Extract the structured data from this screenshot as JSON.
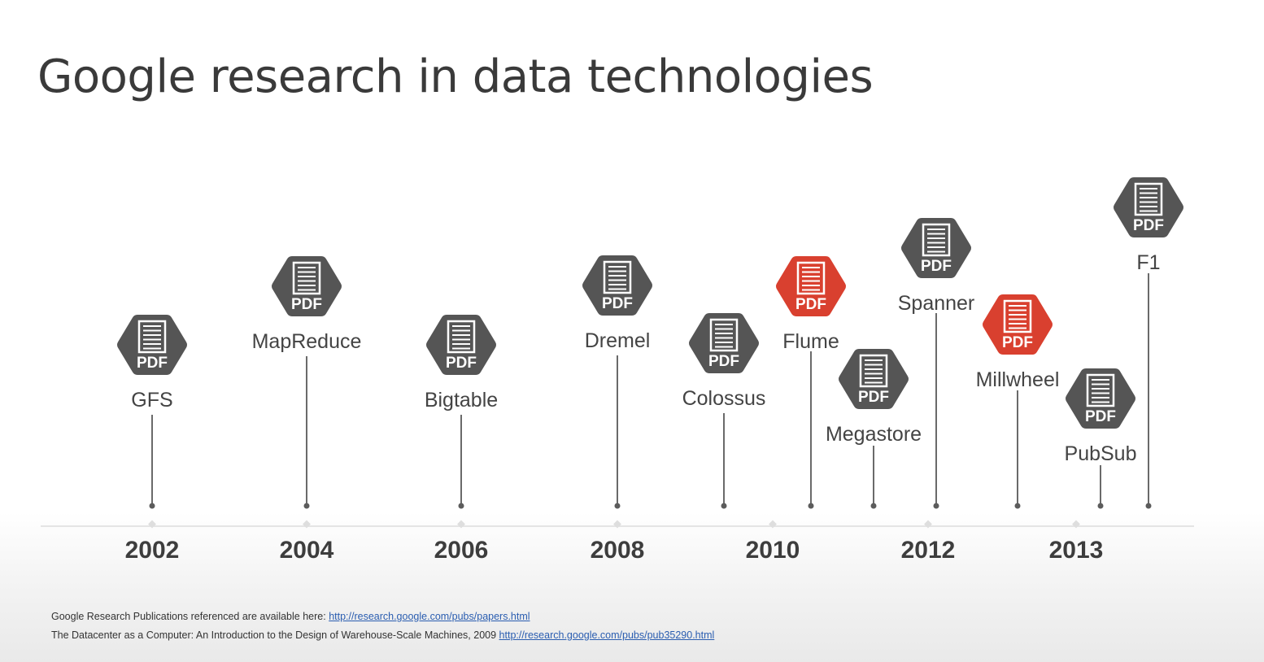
{
  "title": "Google research in data technologies",
  "colors": {
    "icon_default": "#555555",
    "icon_highlight": "#d9402f",
    "icon_glyph": "#ffffff",
    "link": "#2a5db0"
  },
  "icon": "pdf-hexagon-icon",
  "icon_text": "PDF",
  "years": [
    "2002",
    "2004",
    "2006",
    "2008",
    "2010",
    "2012",
    "2013"
  ],
  "papers": [
    {
      "name": "GFS",
      "highlight": false
    },
    {
      "name": "MapReduce",
      "highlight": false
    },
    {
      "name": "Bigtable",
      "highlight": false
    },
    {
      "name": "Dremel",
      "highlight": false
    },
    {
      "name": "Colossus",
      "highlight": false
    },
    {
      "name": "Flume",
      "highlight": true
    },
    {
      "name": "Megastore",
      "highlight": false
    },
    {
      "name": "Spanner",
      "highlight": false
    },
    {
      "name": "Millwheel",
      "highlight": true
    },
    {
      "name": "PubSub",
      "highlight": false
    },
    {
      "name": "F1",
      "highlight": false
    }
  ],
  "footer": {
    "line1_text": "Google Research Publications referenced are available here: ",
    "line1_link": "http://research.google.com/pubs/papers.html",
    "line2_text": "The Datacenter as a Computer: An Introduction to the Design of Warehouse-Scale Machines, 2009 ",
    "line2_link": "http://research.google.com/pubs/pub35290.html"
  }
}
